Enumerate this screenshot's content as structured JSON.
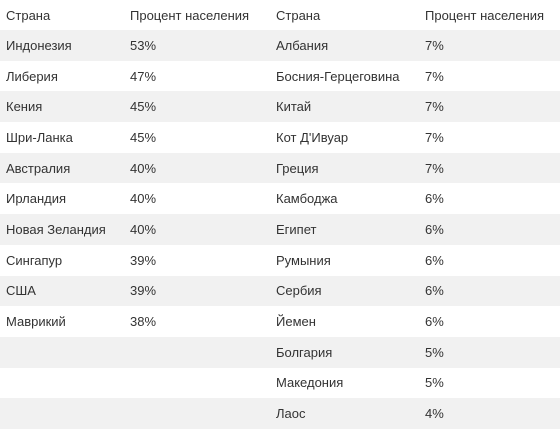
{
  "table": {
    "headers": [
      "Страна",
      "Процент населения",
      "Страна",
      "Процент населения"
    ],
    "rows": [
      [
        "Индонезия",
        "53%",
        "Албания",
        "7%"
      ],
      [
        "Либерия",
        "47%",
        "Босния-Герцеговина",
        "7%"
      ],
      [
        "Кения",
        "45%",
        "Китай",
        "7%"
      ],
      [
        "Шри-Ланка",
        "45%",
        "Кот Д'Ивуар",
        "7%"
      ],
      [
        "Австралия",
        "40%",
        "Греция",
        "7%"
      ],
      [
        "Ирландия",
        "40%",
        "Камбоджа",
        "6%"
      ],
      [
        "Новая Зеландия",
        "40%",
        "Египет",
        "6%"
      ],
      [
        "Сингапур",
        "39%",
        "Румыния",
        "6%"
      ],
      [
        "США",
        "39%",
        "Сербия",
        "6%"
      ],
      [
        "Маврикий",
        "38%",
        "Йемен",
        "6%"
      ],
      [
        "",
        "",
        "Болгария",
        "5%"
      ],
      [
        "",
        "",
        "Македония",
        "5%"
      ],
      [
        "",
        "",
        "Лаос",
        "4%"
      ]
    ]
  }
}
